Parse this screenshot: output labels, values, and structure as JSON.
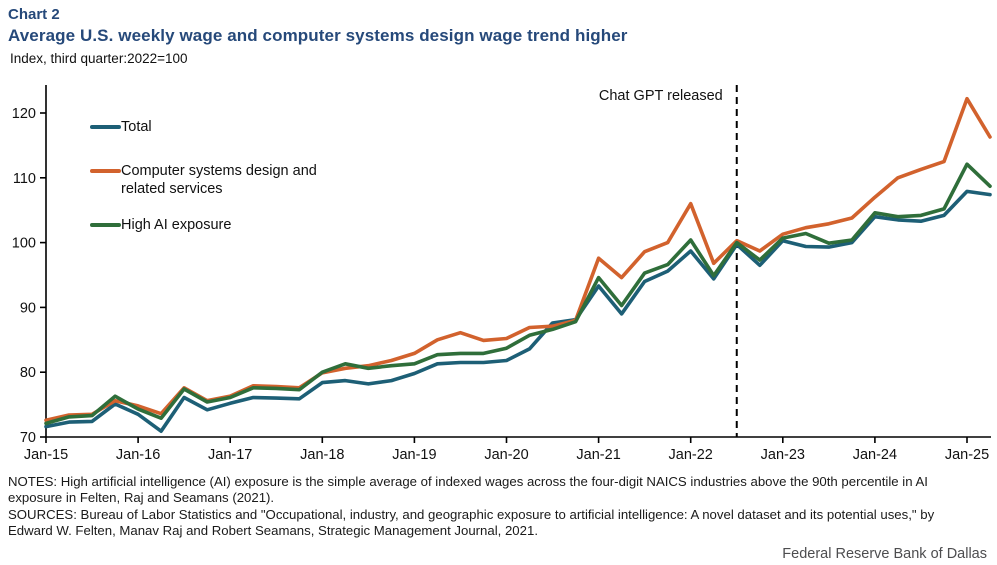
{
  "header": {
    "chart_label": "Chart 2",
    "title": "Average U.S. weekly wage and computer systems design wage trend higher",
    "subtitle": "Index, third quarter:2022=100"
  },
  "chart_data": {
    "type": "line",
    "x_start": "2015-Q1",
    "x_end": "2025-Q2",
    "points_per_year": 4,
    "x_tick_labels": [
      "Jan-15",
      "Jan-16",
      "Jan-17",
      "Jan-18",
      "Jan-19",
      "Jan-20",
      "Jan-21",
      "Jan-22",
      "Jan-23",
      "Jan-24",
      "Jan-25"
    ],
    "y_ticks": [
      70,
      80,
      90,
      100,
      110,
      120
    ],
    "ylim": [
      70,
      124.3
    ],
    "grid": "off",
    "legend_position": "upper-left-inside",
    "annotation": {
      "text": "Chat GPT released",
      "line_style": "dashed-vertical",
      "line_color": "#000000",
      "quarter_index": 30,
      "quarter": "2022-Q3"
    },
    "series": [
      {
        "name": "Total",
        "color": "#1D5F76",
        "values": [
          71.6,
          72.3,
          72.4,
          75.1,
          73.5,
          70.9,
          76.1,
          74.2,
          75.2,
          76.1,
          76.0,
          75.9,
          78.4,
          78.7,
          78.2,
          78.7,
          79.8,
          81.3,
          81.5,
          81.5,
          81.8,
          83.6,
          87.6,
          88.1,
          93.3,
          89.0,
          94.0,
          95.6,
          98.7,
          94.4,
          99.7,
          96.5,
          100.3,
          99.4,
          99.3,
          100.0,
          104.0,
          103.5,
          103.3,
          104.2,
          107.9,
          107.4
        ]
      },
      {
        "name": "Computer systems design and related services",
        "color": "#D2622D",
        "values": [
          72.6,
          73.4,
          73.5,
          75.6,
          74.8,
          73.6,
          77.6,
          75.6,
          76.3,
          77.9,
          77.8,
          77.6,
          79.9,
          80.6,
          81.0,
          81.8,
          82.9,
          85.0,
          86.1,
          84.9,
          85.2,
          86.9,
          87.1,
          88.0,
          97.6,
          94.6,
          98.6,
          100.0,
          106.0,
          96.8,
          100.3,
          98.7,
          101.3,
          102.3,
          102.9,
          103.8,
          107.0,
          110.0,
          111.3,
          112.5,
          122.2,
          116.3
        ]
      },
      {
        "name": "High AI exposure",
        "color": "#2F6E3A",
        "values": [
          72.1,
          73.1,
          73.3,
          76.3,
          74.3,
          72.9,
          77.4,
          75.4,
          76.1,
          77.6,
          77.5,
          77.3,
          80.0,
          81.3,
          80.6,
          81.0,
          81.3,
          82.7,
          82.9,
          82.9,
          83.7,
          85.7,
          86.6,
          87.8,
          94.6,
          90.3,
          95.3,
          96.6,
          100.4,
          94.9,
          100.0,
          97.3,
          100.7,
          101.4,
          99.9,
          100.4,
          104.6,
          104.0,
          104.2,
          105.2,
          112.1,
          108.7
        ]
      }
    ]
  },
  "legend": {
    "item1": "Total",
    "item2": "Computer systems design and related services",
    "item3": "High AI exposure"
  },
  "notes": {
    "notes_text": "NOTES: High artificial intelligence (AI) exposure is the simple average of indexed wages across the four-digit NAICS industries above the 90th percentile in AI exposure in Felten, Raj and Seamans (2021).",
    "sources_text": "SOURCES: Bureau of Labor Statistics and \"Occupational, industry, and geographic exposure to artificial intelligence: A novel dataset and its potential uses,\" by Edward W. Felten, Manav Raj and Robert Seamans, Strategic Management Journal, 2021."
  },
  "footer": {
    "attribution": "Federal Reserve Bank of Dallas"
  }
}
